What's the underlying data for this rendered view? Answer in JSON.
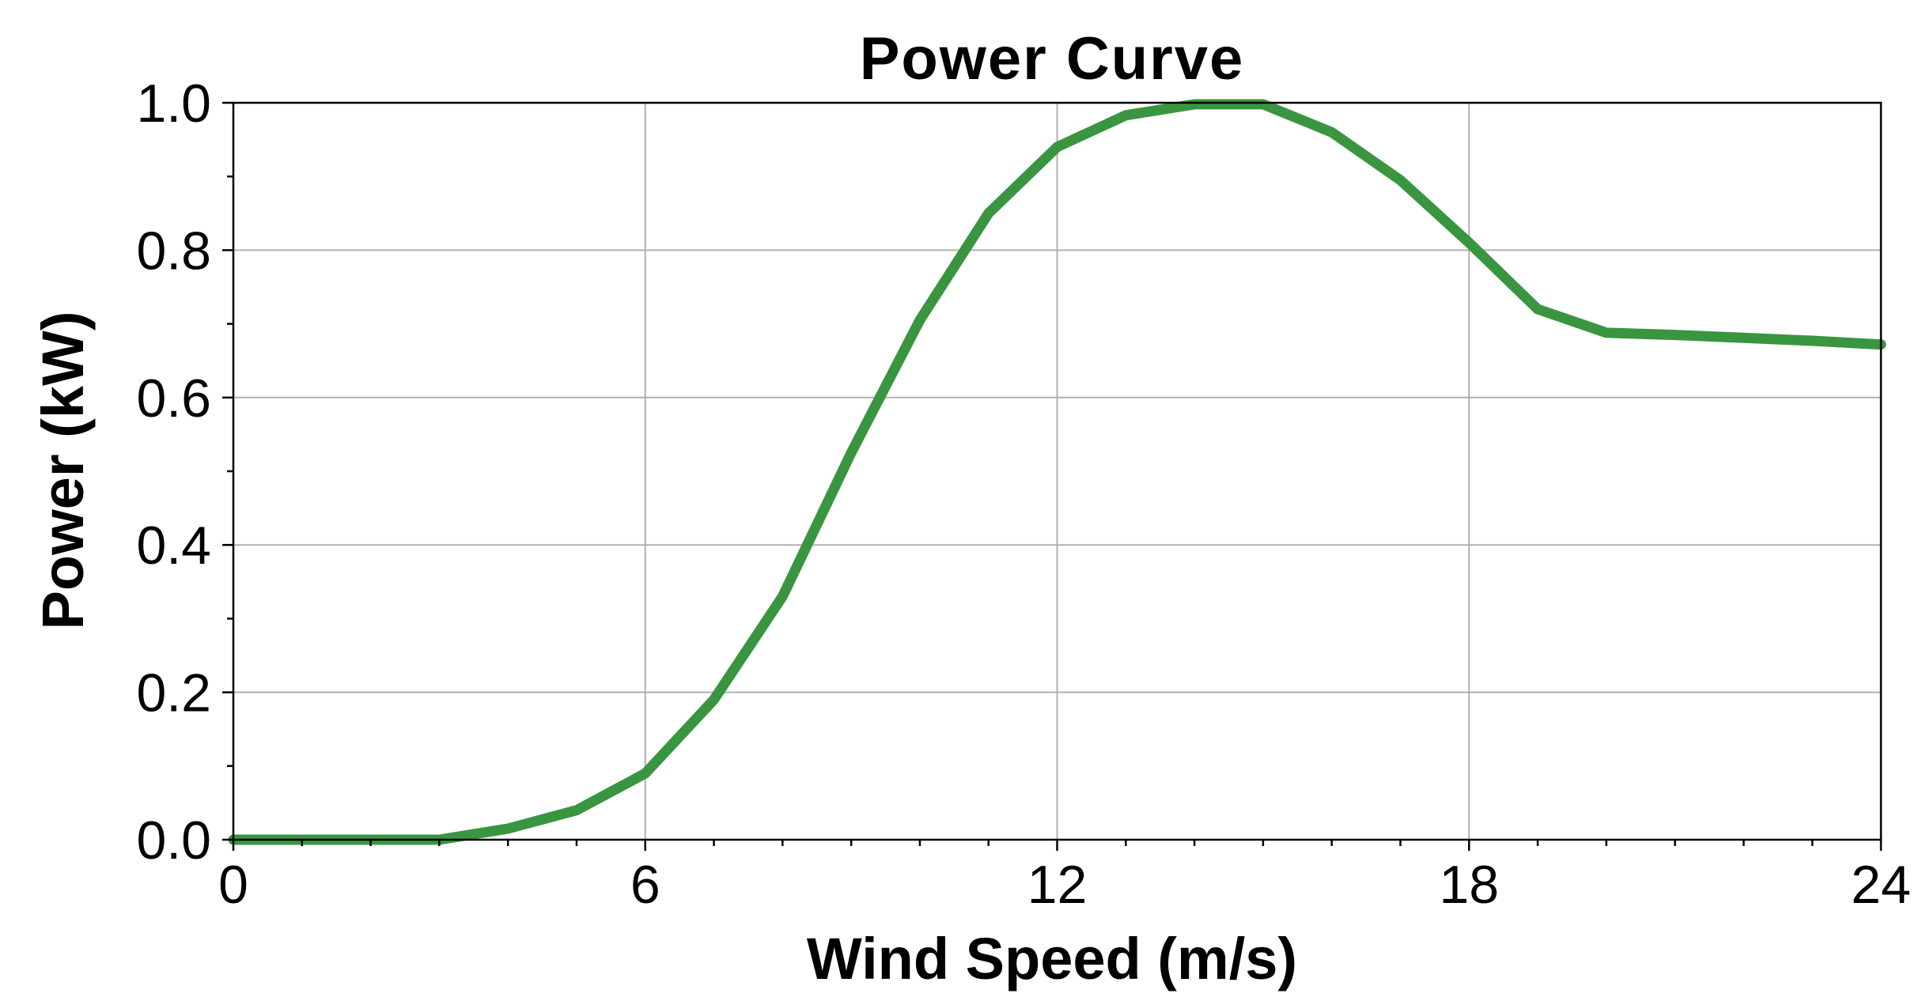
{
  "chart_data": {
    "type": "line",
    "title": "Power Curve",
    "xlabel": "Wind Speed (m/s)",
    "ylabel": "Power (kW)",
    "xlim": [
      0,
      24
    ],
    "ylim": [
      0,
      1.0
    ],
    "x_ticks": [
      0,
      6,
      12,
      18,
      24
    ],
    "x_tick_labels": [
      "0",
      "6",
      "12",
      "18",
      "24"
    ],
    "x_minor_step": 1,
    "y_ticks": [
      0.0,
      0.2,
      0.4,
      0.6,
      0.8,
      1.0
    ],
    "y_tick_labels": [
      "0.0",
      "0.2",
      "0.4",
      "0.6",
      "0.8",
      "1.0"
    ],
    "y_minor_step": 0.1,
    "grid": true,
    "colors": {
      "line": "#3a9540",
      "grid": "#b0b0b0",
      "axis": "#000000"
    },
    "series": [
      {
        "x": [
          0,
          1,
          2,
          3,
          4,
          5,
          6,
          7,
          8,
          9,
          10,
          11,
          12,
          13,
          14,
          15,
          16,
          17,
          18,
          19,
          20,
          21,
          22,
          23,
          24
        ],
        "values": [
          0.0,
          0.0,
          0.0,
          0.0,
          0.015,
          0.04,
          0.09,
          0.19,
          0.33,
          0.525,
          0.705,
          0.85,
          0.94,
          0.983,
          0.998,
          0.998,
          0.96,
          0.895,
          0.81,
          0.72,
          0.688,
          0.685,
          0.681,
          0.677,
          0.672
        ]
      }
    ]
  }
}
